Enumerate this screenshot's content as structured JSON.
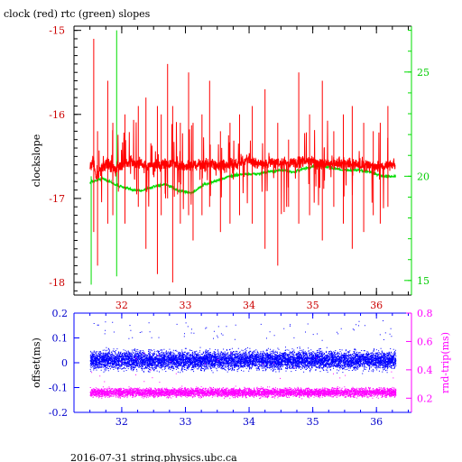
{
  "chart_data": [
    {
      "type": "line",
      "title": "clock (red) rtc (green) slopes",
      "xlabel": "",
      "ylabel": "clockslope",
      "xlim": [
        31.25,
        36.55
      ],
      "ylim": [
        -18.15,
        -14.95
      ],
      "y2lim": [
        14.3,
        27.2
      ],
      "x_ticks": [
        32,
        33,
        34,
        35,
        36
      ],
      "y_ticks": [
        -18,
        -17,
        -16,
        -15
      ],
      "y2_ticks": [
        15,
        20,
        25
      ],
      "colors": {
        "series_1": "#ff0000",
        "series_2": "#00dd00",
        "axes": "#000000"
      },
      "series": [
        {
          "axis": "left",
          "color": "#ff0000",
          "x": [
            31.5,
            31.55,
            31.6,
            31.7,
            31.8,
            31.9,
            32.0,
            32.2,
            32.4,
            32.6,
            32.8,
            33.0,
            33.2,
            33.4,
            33.6,
            33.8,
            34.0,
            34.2,
            34.4,
            34.6,
            34.8,
            35.0,
            35.2,
            35.4,
            35.6,
            35.8,
            36.0,
            36.3
          ],
          "values": [
            -16.65,
            -16.55,
            -16.75,
            -16.62,
            -16.58,
            -16.66,
            -16.6,
            -16.56,
            -16.62,
            -16.6,
            -16.57,
            -16.63,
            -16.6,
            -16.58,
            -16.62,
            -16.6,
            -16.55,
            -16.6,
            -16.57,
            -16.58,
            -16.56,
            -16.55,
            -16.6,
            -16.58,
            -16.6,
            -16.6,
            -16.62,
            -16.6
          ],
          "spikes_x": [
            31.56,
            31.62,
            31.78,
            31.86,
            32.05,
            32.26,
            32.38,
            32.56,
            32.62,
            32.72,
            32.8,
            32.92,
            33.05,
            33.12,
            33.26,
            33.38,
            33.55,
            33.7,
            33.85,
            34.05,
            34.25,
            34.45,
            34.62,
            34.78,
            34.95,
            35.15,
            35.33,
            35.48,
            35.62,
            35.8,
            35.95,
            36.06,
            36.18
          ],
          "spikes_top": [
            -15.1,
            -16.2,
            -15.6,
            -16.1,
            -16.0,
            -15.9,
            -15.8,
            -15.9,
            -16.0,
            -15.4,
            -15.9,
            -16.1,
            -15.5,
            -16.1,
            -16.0,
            -15.6,
            -16.2,
            -16.1,
            -16.0,
            -15.9,
            -15.7,
            -16.1,
            -16.3,
            -15.5,
            -16.0,
            -15.6,
            -16.2,
            -16.0,
            -15.9,
            -16.1,
            -16.2,
            -16.1,
            -15.9
          ],
          "spikes_bot": [
            -17.4,
            -17.8,
            -17.3,
            -17.2,
            -17.3,
            -17.1,
            -17.6,
            -17.9,
            -17.2,
            -17.0,
            -18.0,
            -17.3,
            -17.2,
            -17.5,
            -17.2,
            -17.1,
            -17.4,
            -17.3,
            -17.2,
            -17.3,
            -17.6,
            -17.8,
            -17.1,
            -17.3,
            -17.2,
            -17.5,
            -17.1,
            -17.3,
            -17.6,
            -17.4,
            -17.2,
            -17.3,
            -17.1
          ]
        },
        {
          "axis": "right",
          "color": "#00dd00",
          "x": [
            31.5,
            31.7,
            31.9,
            32.1,
            32.3,
            32.5,
            32.7,
            32.9,
            33.1,
            33.3,
            33.5,
            33.7,
            33.9,
            34.1,
            34.3,
            34.5,
            34.7,
            34.9,
            35.1,
            35.3,
            35.5,
            35.7,
            35.9,
            36.1,
            36.3
          ],
          "values": [
            19.7,
            19.9,
            19.6,
            19.4,
            19.3,
            19.5,
            19.6,
            19.3,
            19.2,
            19.6,
            19.8,
            20.0,
            20.1,
            20.1,
            20.2,
            20.3,
            20.2,
            20.4,
            20.5,
            20.4,
            20.3,
            20.3,
            20.2,
            20.0,
            20.0
          ],
          "spikes_x": [
            31.52,
            31.92
          ],
          "spikes_top": [
            20.0,
            27.0
          ],
          "spikes_bot": [
            14.8,
            15.2
          ]
        }
      ]
    },
    {
      "type": "scatter",
      "title": "",
      "xlabel": "",
      "ylabel": "offset(ms)",
      "y2label": "rnd-trip(ms)",
      "xlim": [
        31.25,
        36.55
      ],
      "ylim": [
        -0.2,
        0.2
      ],
      "y2lim": [
        0.1,
        0.8
      ],
      "x_ticks": [
        32,
        33,
        34,
        35,
        36
      ],
      "y_ticks": [
        -0.2,
        -0.1,
        0,
        0.1,
        0.2
      ],
      "y_tick_labels": [
        "-0.2",
        "-0.1",
        "0",
        "0.1",
        "0.2"
      ],
      "y2_ticks": [
        0.2,
        0.4,
        0.6,
        0.8
      ],
      "colors": {
        "series_1": "#0000ff",
        "series_2": "#ff00ff",
        "axes": "#0000ff"
      },
      "series": [
        {
          "axis": "left",
          "color": "#0000ff",
          "x_range": [
            31.5,
            36.3
          ],
          "center": 0.01,
          "spread": 0.06,
          "outliers_top": 0.17
        },
        {
          "axis": "right",
          "color": "#ff00ff",
          "x_range": [
            31.5,
            36.3
          ],
          "center": 0.24,
          "spread": 0.05,
          "outliers_top": 0.52
        }
      ]
    }
  ],
  "footer": "2016-07-31 string.physics.ubc.ca"
}
